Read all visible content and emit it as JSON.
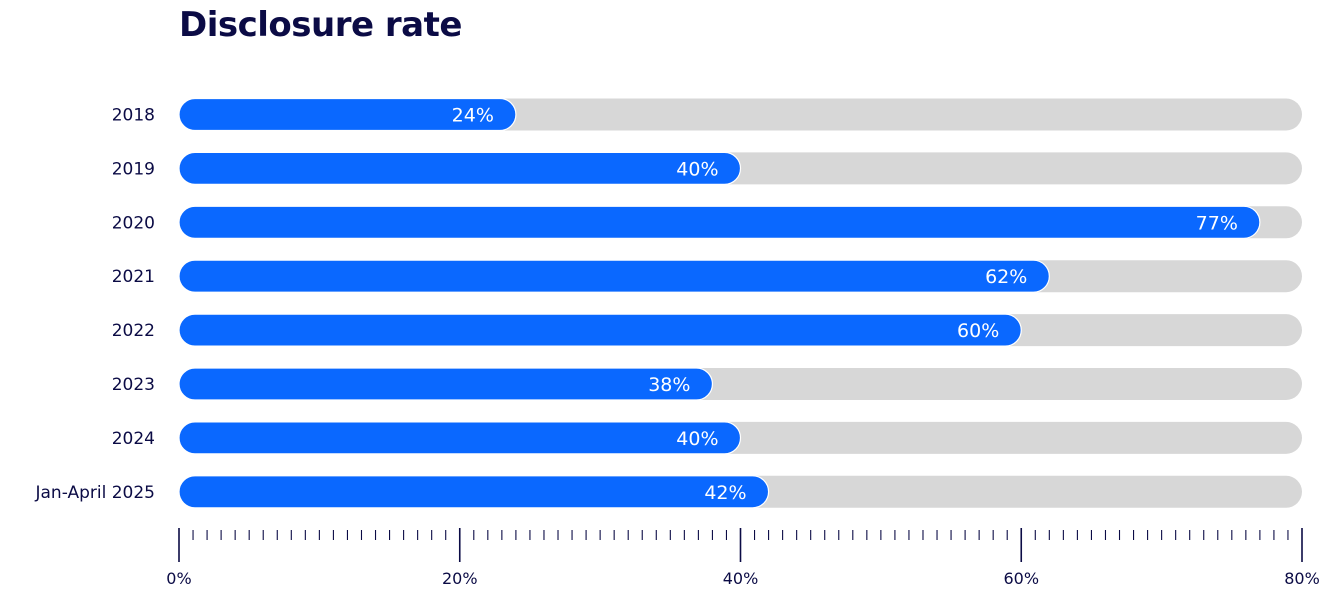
{
  "chart_data": {
    "type": "bar",
    "orientation": "horizontal",
    "title": "Disclosure rate",
    "categories": [
      "2018",
      "2019",
      "2020",
      "2021",
      "2022",
      "2023",
      "2024",
      "Jan-April 2025"
    ],
    "values": [
      24,
      40,
      77,
      62,
      60,
      38,
      40,
      42
    ],
    "value_labels": [
      "24%",
      "40%",
      "77%",
      "62%",
      "60%",
      "38%",
      "40%",
      "42%"
    ],
    "xlim": [
      0,
      80
    ],
    "x_ticks": [
      0,
      20,
      40,
      60,
      80
    ],
    "x_tick_labels": [
      "0%",
      "20%",
      "40%",
      "60%",
      "80%"
    ],
    "minor_tick_step": 1,
    "grid": false,
    "legend": "none"
  },
  "colors": {
    "bar": "#0a68ff",
    "track": "#d7d7d7",
    "text": "#0b0b45",
    "value_text": "#ffffff",
    "axis": "#0b0b45"
  }
}
